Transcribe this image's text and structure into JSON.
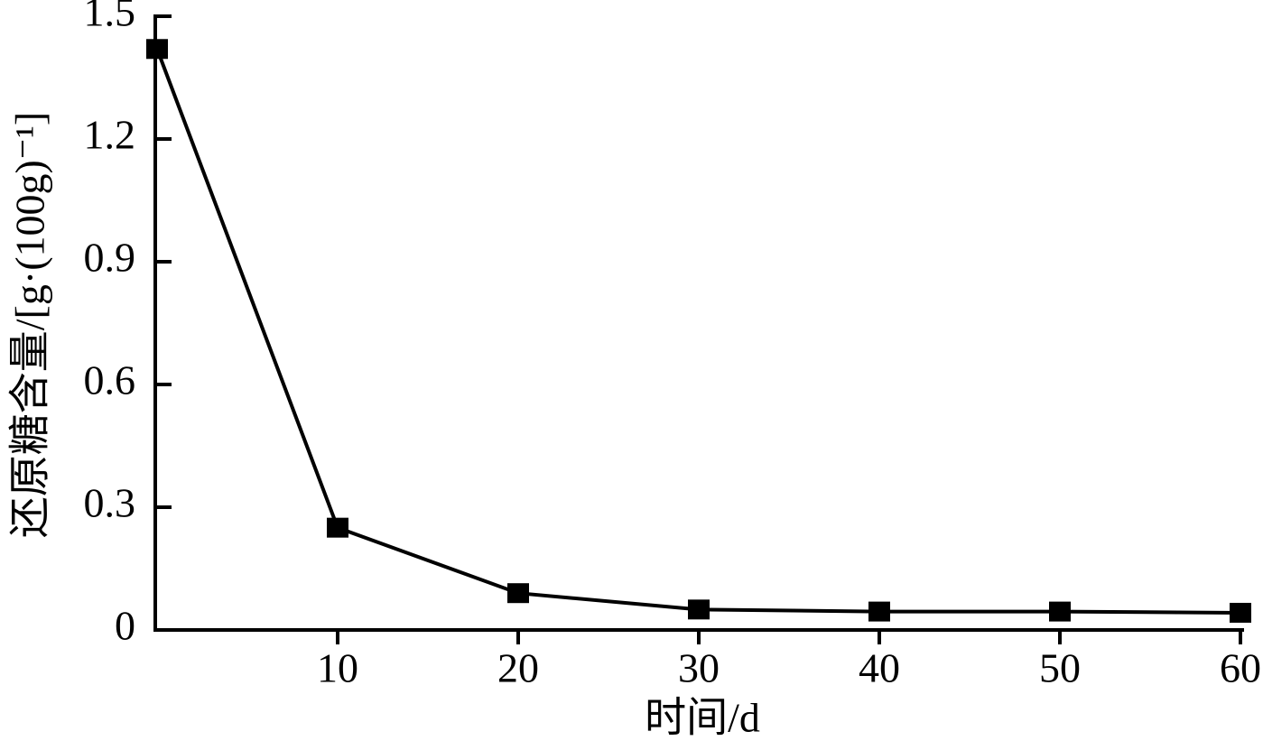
{
  "chart_data": {
    "type": "line",
    "x_label": "时间/d",
    "y_label": "还原糖含量/[g·(100g)⁻¹]",
    "x": [
      0,
      10,
      20,
      30,
      40,
      50,
      60
    ],
    "series": [
      {
        "color": "#000000",
        "values": [
          1.42,
          0.25,
          0.09,
          0.05,
          0.045,
          0.045,
          0.042
        ]
      }
    ],
    "xlim": [
      0,
      60
    ],
    "xticks": [
      10,
      20,
      30,
      40,
      50,
      60
    ],
    "ylim": [
      0,
      1.5
    ],
    "yticks": [
      0,
      0.3,
      0.6,
      0.9,
      1.2,
      1.5
    ]
  }
}
